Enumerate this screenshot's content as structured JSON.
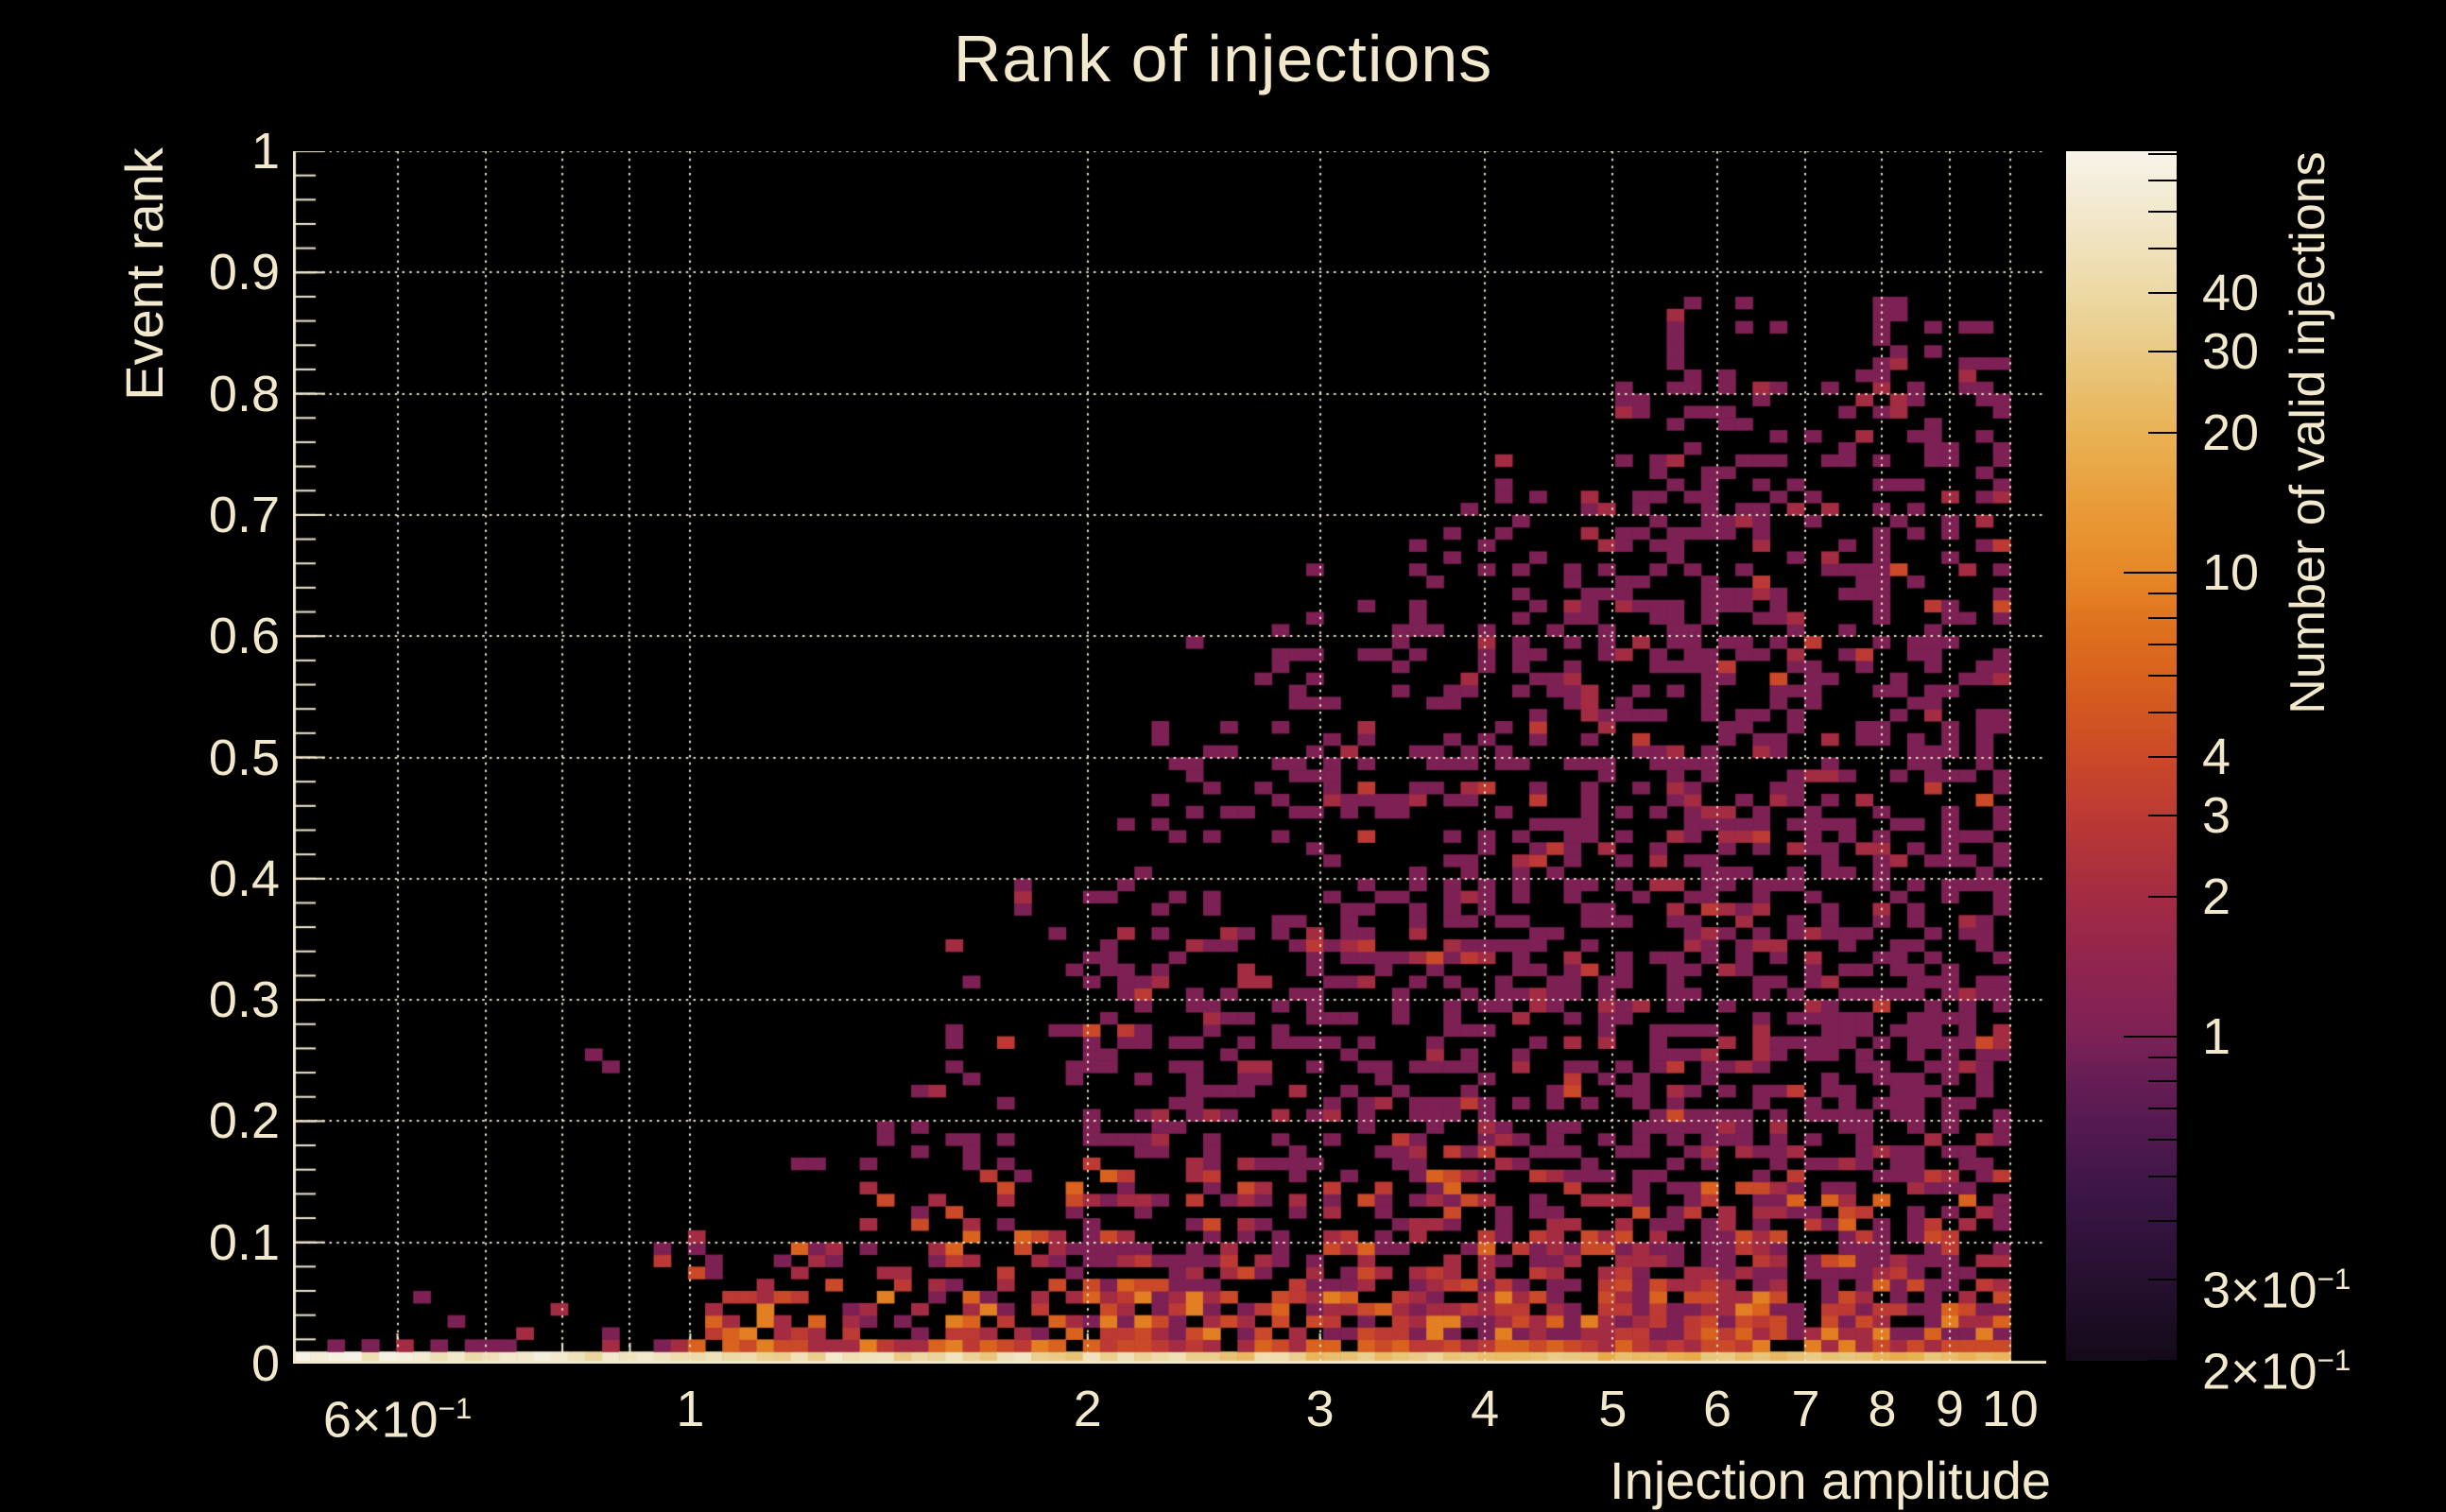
{
  "page": {
    "background": "#000000",
    "text_color": "#f2e8cb",
    "grid_color": "#f4ecd4"
  },
  "chart_data": {
    "type": "heatmap",
    "title": "Rank of injections",
    "xlabel": "Injection amplitude",
    "ylabel": "Event rank",
    "colorbar_label": "Number of valid injections",
    "x_scale": "log",
    "x_range": [
      0.5,
      10.65
    ],
    "x_data_range": [
      0.5,
      10.0
    ],
    "y_range": [
      0,
      1
    ],
    "z_scale": "log",
    "z_range": [
      0.2,
      81
    ],
    "nx": 100,
    "ny": 100,
    "grid": true,
    "legend_position": "right-colorbar",
    "x_ticks": [
      {
        "v": 0.6,
        "base": "6×10",
        "exp": "−1"
      },
      {
        "v": 1,
        "base": "1"
      },
      {
        "v": 2,
        "base": "2"
      },
      {
        "v": 3,
        "base": "3"
      },
      {
        "v": 4,
        "base": "4"
      },
      {
        "v": 5,
        "base": "5"
      },
      {
        "v": 6,
        "base": "6"
      },
      {
        "v": 7,
        "base": "7"
      },
      {
        "v": 8,
        "base": "8"
      },
      {
        "v": 9,
        "base": "9"
      },
      {
        "v": 10,
        "base": "10"
      }
    ],
    "x_grid": [
      0.6,
      0.7,
      0.8,
      0.9,
      1,
      2,
      3,
      4,
      5,
      6,
      7,
      8,
      9,
      10
    ],
    "x_minor_ticks": [
      0.5,
      0.7,
      0.8,
      0.9
    ],
    "y_ticks": [
      {
        "v": 0,
        "label": "0"
      },
      {
        "v": 0.1,
        "label": "0.1"
      },
      {
        "v": 0.2,
        "label": "0.2"
      },
      {
        "v": 0.3,
        "label": "0.3"
      },
      {
        "v": 0.4,
        "label": "0.4"
      },
      {
        "v": 0.5,
        "label": "0.5"
      },
      {
        "v": 0.6,
        "label": "0.6"
      },
      {
        "v": 0.7,
        "label": "0.7"
      },
      {
        "v": 0.8,
        "label": "0.8"
      },
      {
        "v": 0.9,
        "label": "0.9"
      },
      {
        "v": 1,
        "label": "1"
      }
    ],
    "y_minor_step": 0.02,
    "colorbar_ticks": [
      {
        "v": 40,
        "base": "40"
      },
      {
        "v": 30,
        "base": "30"
      },
      {
        "v": 20,
        "base": "20"
      },
      {
        "v": 10,
        "base": "10",
        "major": true
      },
      {
        "v": 4,
        "base": "4"
      },
      {
        "v": 3,
        "base": "3"
      },
      {
        "v": 2,
        "base": "2"
      },
      {
        "v": 1,
        "base": "1",
        "major": true
      },
      {
        "v": 0.3,
        "base": "3×10",
        "exp": "−1"
      },
      {
        "v": 0.2,
        "base": "2×10",
        "exp": "−1"
      }
    ],
    "colorbar_minor_ticks": [
      0.2,
      0.3,
      0.4,
      0.5,
      0.6,
      0.7,
      0.8,
      0.9,
      2,
      3,
      4,
      5,
      6,
      7,
      8,
      9,
      20,
      30,
      40,
      50,
      60,
      70,
      80
    ],
    "colormap": [
      [
        0.2,
        "#140a18"
      ],
      [
        0.3,
        "#261030"
      ],
      [
        0.45,
        "#3a1545"
      ],
      [
        0.65,
        "#551a50"
      ],
      [
        0.85,
        "#6a1e55"
      ],
      [
        1.0,
        "#7d2155"
      ],
      [
        1.35,
        "#8d2450"
      ],
      [
        1.8,
        "#9d2947"
      ],
      [
        2.3,
        "#ac303d"
      ],
      [
        3,
        "#bc3a33"
      ],
      [
        4,
        "#ca4928"
      ],
      [
        5.5,
        "#d55c1f"
      ],
      [
        7.5,
        "#de701d"
      ],
      [
        10,
        "#e68827"
      ],
      [
        14,
        "#e89c38"
      ],
      [
        20,
        "#e9b254"
      ],
      [
        28,
        "#e9c67c"
      ],
      [
        40,
        "#ecd9a4"
      ],
      [
        55,
        "#f1e5c4"
      ],
      [
        70,
        "#f5eedb"
      ],
      [
        81,
        "#f8f4ea"
      ]
    ],
    "pattern": {
      "seed": 1337,
      "envelope_logx_rank": [
        [
          -0.3,
          0.012
        ],
        [
          -0.1,
          0.05
        ],
        [
          0,
          0.1
        ],
        [
          0.08,
          0.17
        ],
        [
          0.18,
          0.28
        ],
        [
          0.3,
          0.46
        ],
        [
          0.4,
          0.55
        ],
        [
          0.48,
          0.63
        ],
        [
          0.6,
          0.7
        ],
        [
          0.7,
          0.79
        ],
        [
          0.78,
          0.86
        ],
        [
          1.03,
          0.87
        ]
      ],
      "env_jitter": [
        0.85,
        0.28,
        0.88
      ],
      "fill": {
        "p_neg": 0.06,
        "p_base": 0.1,
        "p_slope": 0.52,
        "p_max": 0.42,
        "depth": [
          1.25,
          0.6
        ],
        "band1_y": 0.1,
        "band1_add": 0.2,
        "band2_y": 0.05,
        "band2_add": 0.18,
        "neg_band_y": 0.04,
        "neg_band_add": 0.06,
        "col_jitter": [
          0.75,
          0.5
        ]
      },
      "row0": {
        "amp": 48,
        "exp": -0.42,
        "jitter": [
          0.7,
          0.75
        ]
      },
      "row1": {
        "p_neg": 0.3,
        "p_pos": 0.93,
        "counts_neg": [
          [
            1,
            0.6
          ],
          [
            2,
            0.4
          ]
        ],
        "counts_pos": [
          [
            2,
            0.2
          ],
          [
            3,
            0.25
          ],
          [
            4,
            0.2
          ],
          [
            6,
            0.2
          ],
          [
            9,
            0.15
          ]
        ]
      },
      "counts": {
        "deep_y": 0.06,
        "deep": [
          [
            1,
            0.25
          ],
          [
            2,
            0.25
          ],
          [
            3,
            0.2
          ],
          [
            4,
            0.12
          ],
          [
            6,
            0.1
          ],
          [
            9,
            0.08
          ]
        ],
        "mid_y": 0.16,
        "mid": [
          [
            1,
            0.45
          ],
          [
            2,
            0.25
          ],
          [
            3,
            0.15
          ],
          [
            4,
            0.1
          ],
          [
            6,
            0.05
          ]
        ],
        "high": [
          [
            1,
            0.8
          ],
          [
            2,
            0.13
          ],
          [
            3,
            0.05
          ],
          [
            4,
            0.02
          ]
        ],
        "top_d": 0.8,
        "top": [
          [
            1,
            0.88
          ],
          [
            2,
            0.12
          ]
        ]
      },
      "outliers": [
        [
          0.85,
          0.25,
          1
        ],
        [
          0.88,
          0.245,
          1
        ],
        [
          0.62,
          0.05,
          1
        ],
        [
          0.67,
          0.035,
          1
        ],
        [
          0.57,
          0.018,
          1
        ],
        [
          0.74,
          0.02,
          2
        ],
        [
          0.96,
          0.09,
          1
        ]
      ],
      "description": "Sparse 2D histogram (log x). A bright high-count band sits at rank≈0 (counts 20-80, palest at small amplitude), a dense orange band fills rank<0.1 for amplitude>1, and mostly single-count magenta cells scatter below an upper envelope rising from rank≈0.1 at amplitude 1 to rank≈0.86 at amplitude 6-10. No entries above amplitude 10."
    }
  }
}
